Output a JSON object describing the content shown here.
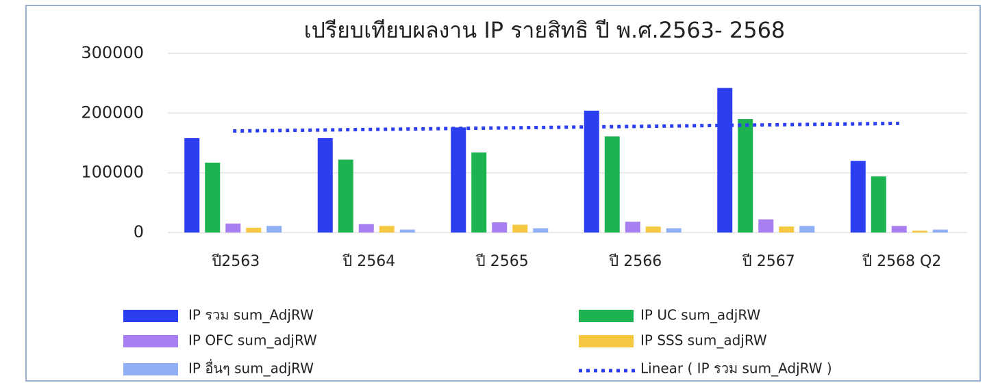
{
  "chart_data": {
    "type": "bar",
    "title": "เปรียบเทียบผลงาน IP รายสิทธิ ปี พ.ศ.2563- 2568",
    "categories": [
      "ปี2563",
      "ปี 2564",
      "ปี 2565",
      "ปี 2566",
      "ปี 2567",
      "ปี 2568 Q2"
    ],
    "series": [
      {
        "name": "IP รวม sum_AdjRW",
        "color": "#2b3ef0",
        "values": [
          158000,
          158000,
          176000,
          204000,
          242000,
          120000
        ]
      },
      {
        "name": "IP UC  sum_adjRW",
        "color": "#1db350",
        "values": [
          117000,
          122000,
          134000,
          161000,
          190000,
          94000
        ]
      },
      {
        "name": "IP OFC sum_adjRW",
        "color": "#a77ff0",
        "values": [
          15000,
          14000,
          17000,
          18000,
          22000,
          11000
        ]
      },
      {
        "name": "IP SSS sum_adjRW",
        "color": "#f5c842",
        "values": [
          8000,
          11000,
          13000,
          10000,
          10000,
          3000
        ]
      },
      {
        "name": "IP อื่นๆ sum_adjRW",
        "color": "#8fb0f5",
        "values": [
          11000,
          5000,
          7000,
          7000,
          11000,
          5000
        ]
      }
    ],
    "trendline": {
      "name": "Linear ( IP รวม sum_AdjRW )",
      "series": 0,
      "color": "#2b3ef0"
    },
    "ylim": [
      0,
      300000
    ],
    "yticks": [
      0,
      100000,
      200000,
      300000
    ],
    "grid": true
  }
}
